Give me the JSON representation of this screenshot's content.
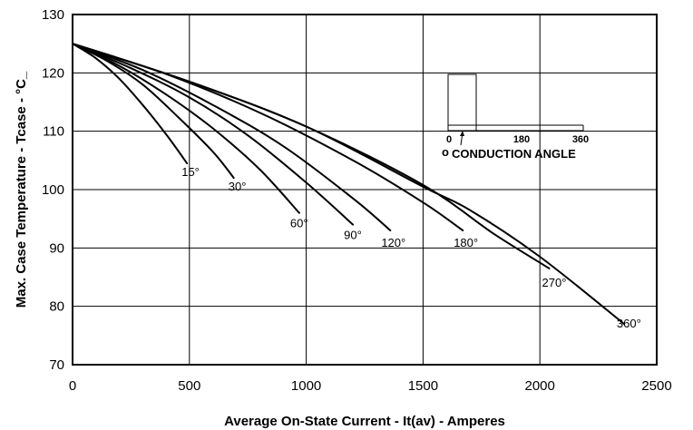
{
  "chart_data": {
    "type": "line",
    "title": "",
    "xlabel": "Average On-State Current - It(av) - Amperes",
    "ylabel": "Max. Case Temperature - Tcase - °C_",
    "xlim": [
      0,
      2500
    ],
    "ylim": [
      70,
      130
    ],
    "x_ticks": [
      "0",
      "500",
      "1000",
      "1500",
      "2000",
      "2500"
    ],
    "y_ticks": [
      "70",
      "80",
      "90",
      "100",
      "110",
      "120",
      "130"
    ],
    "grid": true,
    "series": [
      {
        "name": "15°",
        "x": [
          0,
          100,
          200,
          300,
          400,
          490
        ],
        "y": [
          125,
          122.5,
          119,
          114.5,
          109.5,
          104.5
        ]
      },
      {
        "name": "30°",
        "x": [
          0,
          150,
          300,
          450,
          600,
          690
        ],
        "y": [
          125,
          122,
          118,
          112.5,
          106.5,
          102
        ]
      },
      {
        "name": "60°",
        "x": [
          0,
          200,
          400,
          600,
          800,
          970
        ],
        "y": [
          125,
          121.2,
          116.3,
          110.5,
          103.5,
          96
        ]
      },
      {
        "name": "90°",
        "x": [
          0,
          250,
          500,
          750,
          1000,
          1200
        ],
        "y": [
          125,
          120.8,
          115.8,
          109.3,
          101.2,
          94
        ]
      },
      {
        "name": "120°",
        "x": [
          0,
          300,
          600,
          900,
          1200,
          1360
        ],
        "y": [
          125,
          120.5,
          114.5,
          107.5,
          98.5,
          93
        ]
      },
      {
        "name": "180°",
        "x": [
          0,
          400,
          800,
          1200,
          1500,
          1670
        ],
        "y": [
          125,
          119.8,
          113.2,
          105,
          97.8,
          93
        ]
      },
      {
        "name": "270°",
        "x": [
          0,
          500,
          1000,
          1500,
          1800,
          2040
        ],
        "y": [
          125,
          118.5,
          110.8,
          100.8,
          92.5,
          86.5
        ]
      },
      {
        "name": "360°",
        "x": [
          0,
          500,
          1000,
          1500,
          1700,
          2000,
          2360
        ],
        "y": [
          125,
          118.5,
          110.8,
          100.5,
          96.5,
          88.5,
          77
        ]
      }
    ],
    "inset": {
      "tick_labels": [
        "0",
        "180",
        "360"
      ],
      "degree_mark": "o",
      "title": "CONDUCTION ANGLE"
    }
  }
}
